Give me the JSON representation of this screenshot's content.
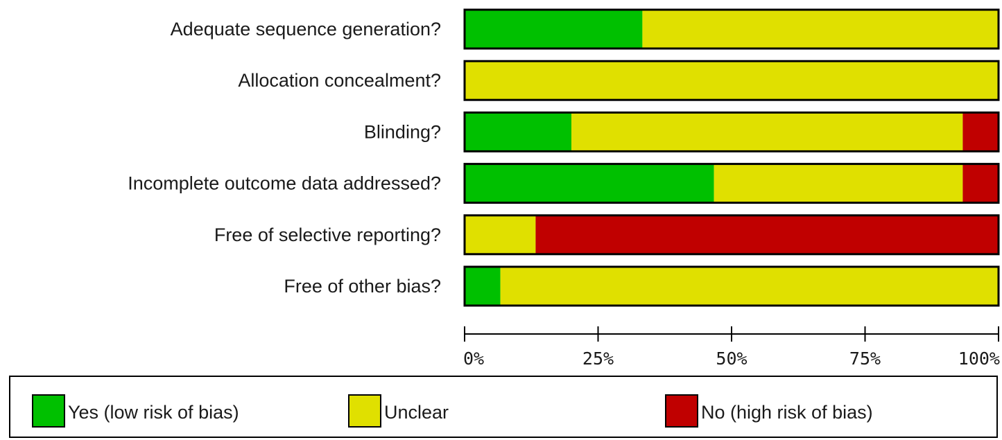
{
  "colors": {
    "low": "#00c000",
    "unclear": "#e0e000",
    "high": "#c00000"
  },
  "chart_data": {
    "type": "bar",
    "orientation": "horizontal",
    "stacked": true,
    "percent_scale": true,
    "categories": [
      "Adequate sequence generation?",
      "Allocation concealment?",
      "Blinding?",
      "Incomplete outcome data addressed?",
      "Free of selective reporting?",
      "Free of other bias?"
    ],
    "series": [
      {
        "name": "Yes (low risk of bias)",
        "color_key": "low",
        "values": [
          33.3,
          0,
          20.0,
          46.7,
          0,
          6.7
        ]
      },
      {
        "name": "Unclear",
        "color_key": "unclear",
        "values": [
          66.7,
          100,
          73.3,
          46.6,
          13.3,
          93.3
        ]
      },
      {
        "name": "No (high risk of bias)",
        "color_key": "high",
        "values": [
          0,
          0,
          6.7,
          6.7,
          86.7,
          0
        ]
      }
    ],
    "xlim": [
      0,
      100
    ],
    "xticks": [
      0,
      25,
      50,
      75,
      100
    ],
    "xtick_labels": [
      "0%",
      "25%",
      "50%",
      "75%",
      "100%"
    ],
    "grid": false,
    "legend_position": "bottom"
  }
}
